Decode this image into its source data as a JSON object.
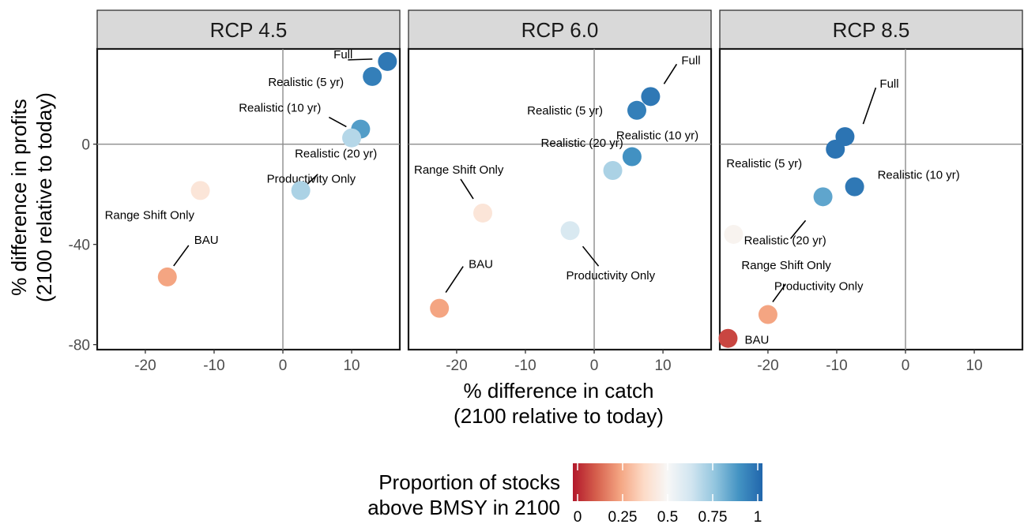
{
  "chart_data": {
    "type": "scatter",
    "x_label_lines": [
      "% difference in catch",
      "(2100 relative to today)"
    ],
    "y_label_lines": [
      "% difference in profits",
      "(2100 relative to today)"
    ],
    "xlim": [
      -27,
      17
    ],
    "ylim": [
      -82,
      38
    ],
    "x_ticks": [
      -20,
      -10,
      0,
      10
    ],
    "y_ticks": [
      -80,
      -40,
      0
    ],
    "x_tick_labels": [
      "-20",
      "-10",
      "0",
      "10"
    ],
    "y_tick_labels": [
      "-80",
      "-40",
      "0"
    ],
    "grid": false,
    "reference_lines": {
      "x": 0,
      "y": 0
    },
    "color_scale": {
      "title_lines": [
        "Proportion of stocks",
        "above BMSY in 2100"
      ],
      "range": [
        0,
        1
      ],
      "ticks": [
        0,
        0.25,
        0.5,
        0.75,
        1
      ],
      "tick_labels": [
        "0",
        "0.25",
        "0.5",
        "0.75",
        "1"
      ],
      "colors": [
        "#b2182b",
        "#d6604d",
        "#f4a582",
        "#fddbc7",
        "#f7f7f7",
        "#d1e5f0",
        "#92c5de",
        "#4393c3",
        "#2166ac"
      ],
      "legend_position": "bottom"
    },
    "panels": [
      {
        "title": "RCP 4.5",
        "points": [
          {
            "label": "Full",
            "x": 15.2,
            "y": 33,
            "proportion": 0.95
          },
          {
            "label": "Realistic (5 yr)",
            "x": 13.0,
            "y": 27,
            "proportion": 0.93
          },
          {
            "label": "Realistic (10 yr)",
            "x": 11.3,
            "y": 6,
            "proportion": 0.85
          },
          {
            "label": "Realistic (20 yr)",
            "x": 10.0,
            "y": 2.5,
            "proportion": 0.68
          },
          {
            "label": "Productivity Only",
            "x": 2.6,
            "y": -18.5,
            "proportion": 0.7
          },
          {
            "label": "Range Shift Only",
            "x": -12.0,
            "y": -18.5,
            "proportion": 0.42
          },
          {
            "label": "BAU",
            "x": -16.8,
            "y": -53,
            "proportion": 0.25
          }
        ]
      },
      {
        "title": "RCP 6.0",
        "points": [
          {
            "label": "Full",
            "x": 8.2,
            "y": 19,
            "proportion": 0.95
          },
          {
            "label": "Realistic (5 yr)",
            "x": 6.2,
            "y": 13.5,
            "proportion": 0.93
          },
          {
            "label": "Realistic (10 yr)",
            "x": 5.5,
            "y": -5,
            "proportion": 0.88
          },
          {
            "label": "Realistic (20 yr)",
            "x": 2.7,
            "y": -10.5,
            "proportion": 0.7
          },
          {
            "label": "Productivity Only",
            "x": -3.5,
            "y": -34.5,
            "proportion": 0.6
          },
          {
            "label": "Range Shift Only",
            "x": -16.2,
            "y": -27.5,
            "proportion": 0.42
          },
          {
            "label": "BAU",
            "x": -22.5,
            "y": -65.5,
            "proportion": 0.25
          }
        ]
      },
      {
        "title": "RCP 8.5",
        "points": [
          {
            "label": "Full",
            "x": -8.8,
            "y": 3,
            "proportion": 0.96
          },
          {
            "label": "Realistic (5 yr)",
            "x": -10.2,
            "y": -2,
            "proportion": 0.96
          },
          {
            "label": "Realistic (10 yr)",
            "x": -7.4,
            "y": -17,
            "proportion": 0.95
          },
          {
            "label": "Realistic (20 yr)",
            "x": -12.0,
            "y": -21,
            "proportion": 0.83
          },
          {
            "label": "Range Shift Only",
            "x": -25.0,
            "y": -36,
            "proportion": 0.48
          },
          {
            "label": "Productivity Only",
            "x": -20.0,
            "y": -68,
            "proportion": 0.25
          },
          {
            "label": "BAU",
            "x": -25.8,
            "y": -77.5,
            "proportion": 0.08
          }
        ]
      }
    ]
  }
}
